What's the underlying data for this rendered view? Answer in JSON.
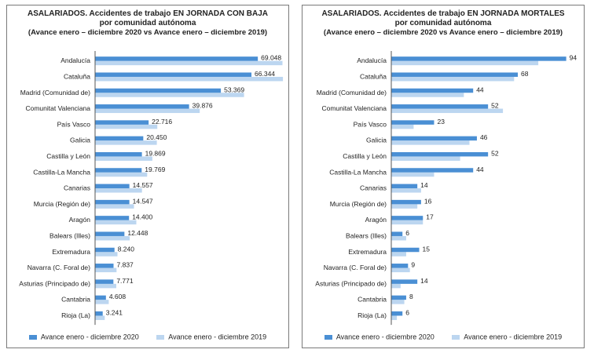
{
  "colors": {
    "series_2020": "#4a8fd4",
    "series_2019": "#bcd6f0"
  },
  "legend": {
    "series_2020": "Avance enero - diciembre 2020",
    "series_2019": "Avance enero - diciembre 2019"
  },
  "chart_data": [
    {
      "type": "bar",
      "orientation": "horizontal",
      "title": "ASALARIADOS. Accidentes de trabajo EN JORNADA CON BAJA",
      "subtitle": "por comunidad autónoma",
      "subtitle2": "(Avance enero – diciembre 2020 vs Avance enero – diciembre 2019)",
      "categories": [
        "Andalucía",
        "Cataluña",
        "Madrid (Comunidad de)",
        "Comunitat Valenciana",
        "País Vasco",
        "Galicia",
        "Castilla y León",
        "Castilla-La Mancha",
        "Canarias",
        "Murcia (Región de)",
        "Aragón",
        "Balears (Illes)",
        "Extremadura",
        "Navarra (C. Foral de)",
        "Asturias (Principado de)",
        "Cantabria",
        "Rioja (La)"
      ],
      "series": [
        {
          "name": "Avance enero - diciembre 2020",
          "values": [
            69048,
            66344,
            53369,
            39876,
            22716,
            20450,
            19869,
            19769,
            14557,
            14547,
            14400,
            12448,
            8240,
            7837,
            7771,
            4608,
            3241
          ],
          "labels": [
            "69.048",
            "66.344",
            "53.369",
            "39.876",
            "22.716",
            "20.450",
            "19.869",
            "19.769",
            "14.557",
            "14.547",
            "14.400",
            "12.448",
            "8.240",
            "7.837",
            "7.771",
            "4.608",
            "3.241"
          ]
        },
        {
          "name": "Avance enero - diciembre 2019",
          "values": [
            79500,
            79700,
            63200,
            44400,
            26400,
            26200,
            24300,
            22100,
            19900,
            16500,
            17500,
            14700,
            9500,
            9100,
            9000,
            5800,
            4100
          ]
        }
      ],
      "xlim": [
        0,
        80000
      ],
      "grid": false,
      "legend_position": "bottom"
    },
    {
      "type": "bar",
      "orientation": "horizontal",
      "title": "ASALARIADOS. Accidentes de trabajo EN JORNADA MORTALES",
      "subtitle": "por comunidad autónoma",
      "subtitle2": "(Avance enero – diciembre 2020 vs Avance enero – diciembre 2019)",
      "categories": [
        "Andalucía",
        "Cataluña",
        "Madrid (Comunidad de)",
        "Comunitat Valenciana",
        "País Vasco",
        "Galicia",
        "Castilla y León",
        "Castilla-La Mancha",
        "Canarias",
        "Murcia (Región de)",
        "Aragón",
        "Balears (Illes)",
        "Extremadura",
        "Navarra (C. Foral de)",
        "Asturias (Principado de)",
        "Cantabria",
        "Rioja (La)"
      ],
      "series": [
        {
          "name": "Avance enero - diciembre 2020",
          "values": [
            94,
            68,
            44,
            52,
            23,
            46,
            52,
            44,
            14,
            16,
            17,
            6,
            15,
            9,
            14,
            8,
            6
          ],
          "labels": [
            "94",
            "68",
            "44",
            "52",
            "23",
            "46",
            "52",
            "44",
            "14",
            "16",
            "17",
            "6",
            "15",
            "9",
            "14",
            "8",
            "6"
          ]
        },
        {
          "name": "Avance enero - diciembre 2019",
          "values": [
            79,
            66,
            39,
            60,
            12,
            42,
            37,
            23,
            16,
            14,
            17,
            8,
            8,
            10,
            5,
            7,
            3
          ]
        }
      ],
      "xlim": [
        0,
        95
      ],
      "grid": false,
      "legend_position": "bottom"
    }
  ]
}
